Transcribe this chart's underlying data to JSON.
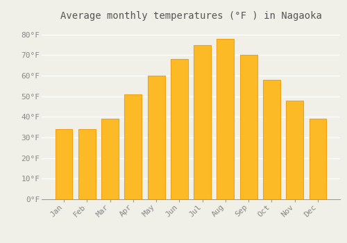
{
  "months": [
    "Jan",
    "Feb",
    "Mar",
    "Apr",
    "May",
    "Jun",
    "Jul",
    "Aug",
    "Sep",
    "Oct",
    "Nov",
    "Dec"
  ],
  "temperatures": [
    34,
    34,
    39,
    51,
    60,
    68,
    75,
    78,
    70,
    58,
    48,
    39
  ],
  "bar_color": "#FDBA27",
  "bar_edge_color": "#F0A010",
  "title": "Average monthly temperatures (°F ) in Nagaoka",
  "ylim": [
    0,
    85
  ],
  "yticks": [
    0,
    10,
    20,
    30,
    40,
    50,
    60,
    70,
    80
  ],
  "ytick_labels": [
    "0°F",
    "10°F",
    "20°F",
    "30°F",
    "40°F",
    "50°F",
    "60°F",
    "70°F",
    "80°F"
  ],
  "background_color": "#f0f0e8",
  "grid_color": "#ffffff",
  "title_fontsize": 10,
  "tick_fontsize": 8,
  "bar_width": 0.75
}
